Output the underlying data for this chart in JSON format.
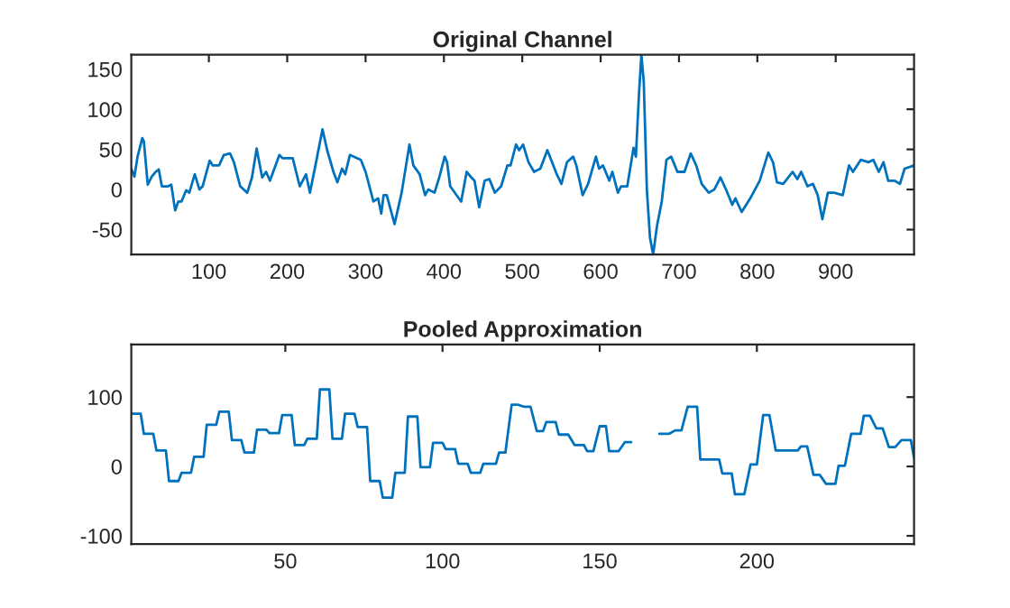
{
  "chart_data": [
    {
      "type": "line",
      "title": "Original Channel",
      "xlim": [
        1,
        1000
      ],
      "ylim": [
        -81,
        168
      ],
      "xticks": [
        100,
        200,
        300,
        400,
        500,
        600,
        700,
        800,
        900
      ],
      "yticks": [
        -50,
        0,
        50,
        100,
        150
      ],
      "grid": false,
      "series": [
        {
          "color": "#0072bd",
          "x": [
            1,
            5,
            9,
            15,
            17,
            22,
            27,
            32,
            36,
            40,
            48,
            52,
            57,
            61,
            65,
            71,
            75,
            82,
            88,
            92,
            101,
            105,
            113,
            119,
            127,
            132,
            140,
            149,
            155,
            161,
            168,
            173,
            178,
            190,
            194,
            207,
            216,
            224,
            229,
            236,
            245,
            251,
            259,
            264,
            270,
            274,
            280,
            294,
            300,
            310,
            316,
            320,
            323,
            327,
            337,
            346,
            356,
            361,
            369,
            376,
            380,
            388,
            394,
            401,
            404,
            408,
            416,
            422,
            429,
            435,
            439,
            445,
            452,
            458,
            465,
            473,
            481,
            485,
            492,
            496,
            501,
            508,
            515,
            523,
            532,
            538,
            544,
            550,
            557,
            565,
            569,
            577,
            584,
            594,
            598,
            603,
            611,
            615,
            622,
            626,
            634,
            642,
            645,
            649,
            652,
            655,
            659,
            663,
            667,
            672,
            678,
            684,
            690,
            698,
            707,
            715,
            722,
            729,
            738,
            745,
            753,
            760,
            768,
            772,
            780,
            791,
            803,
            814,
            820,
            825,
            833,
            845,
            851,
            856,
            864,
            871,
            877,
            883,
            890,
            898,
            909,
            917,
            922,
            932,
            942,
            948,
            955,
            961,
            967,
            975,
            982,
            988,
            1000
          ],
          "values": [
            26,
            16,
            41,
            64,
            60,
            6,
            16,
            22,
            25,
            4,
            4,
            6,
            -26,
            -15,
            -15,
            -1,
            -4,
            19,
            0,
            4,
            36,
            30,
            30,
            43,
            45,
            34,
            4,
            -4,
            15,
            51,
            15,
            22,
            11,
            43,
            39,
            39,
            4,
            19,
            -4,
            30,
            75,
            49,
            22,
            9,
            26,
            19,
            43,
            37,
            22,
            -15,
            -11,
            -30,
            -7,
            -7,
            -43,
            -4,
            56,
            30,
            19,
            -7,
            0,
            -4,
            15,
            41,
            34,
            4,
            -7,
            -15,
            22,
            15,
            11,
            -22,
            11,
            13,
            -4,
            4,
            30,
            30,
            56,
            49,
            56,
            34,
            22,
            26,
            49,
            34,
            19,
            7,
            34,
            41,
            30,
            -7,
            7,
            41,
            26,
            30,
            11,
            22,
            -4,
            4,
            4,
            52,
            41,
            120,
            168,
            135,
            0,
            -60,
            -81,
            -45,
            -15,
            37,
            41,
            22,
            22,
            45,
            30,
            7,
            -4,
            0,
            15,
            0,
            -19,
            -11,
            -28,
            -11,
            11,
            46,
            34,
            9,
            7,
            22,
            13,
            22,
            4,
            7,
            -7,
            -37,
            -4,
            -4,
            -7,
            30,
            22,
            37,
            34,
            37,
            22,
            34,
            11,
            11,
            7,
            26,
            30
          ]
        }
      ]
    },
    {
      "type": "line",
      "title": "Pooled Approximation",
      "xlim": [
        1,
        250
      ],
      "ylim": [
        -112,
        176
      ],
      "xticks": [
        50,
        100,
        150,
        200
      ],
      "yticks": [
        -100,
        0,
        100
      ],
      "grid": false,
      "series": [
        {
          "color": "#0072bd",
          "x": [
            1,
            4,
            5,
            8,
            9,
            12,
            13,
            16,
            17,
            20,
            21,
            24,
            25,
            28,
            29,
            32,
            33,
            36,
            37,
            40,
            41,
            44,
            45,
            48,
            49,
            52,
            53,
            56,
            57,
            60,
            61,
            64,
            65,
            68,
            69,
            72,
            73,
            76,
            77,
            80,
            81,
            84,
            85,
            88,
            89,
            92,
            93,
            96,
            97,
            100,
            101,
            104,
            105,
            108,
            109,
            112,
            113,
            117,
            118,
            120,
            122,
            124,
            126,
            128,
            130,
            132,
            133,
            136,
            137,
            140,
            142,
            145,
            146,
            148,
            150,
            152,
            153,
            156,
            158,
            160,
            161,
            165,
            166,
            168,
            169,
            172,
            174,
            176,
            178,
            181,
            182,
            188,
            189,
            192,
            193,
            196,
            198,
            200,
            202,
            204,
            206,
            213,
            214,
            216,
            218,
            220,
            222,
            225,
            226,
            228,
            230,
            233,
            234,
            236,
            238,
            240,
            242,
            244,
            246,
            249,
            250
          ],
          "values": [
            76,
            76,
            47,
            47,
            23,
            23,
            -21,
            -21,
            -9,
            -9,
            14,
            14,
            60,
            60,
            79,
            79,
            38,
            38,
            20,
            20,
            53,
            53,
            48,
            48,
            74,
            74,
            31,
            31,
            40,
            40,
            111,
            111,
            40,
            40,
            76,
            76,
            57,
            57,
            -21,
            -21,
            -45,
            -45,
            -9,
            -9,
            72,
            72,
            -1,
            -1,
            34,
            34,
            25,
            25,
            4,
            4,
            -9,
            -9,
            4,
            4,
            20,
            20,
            89,
            89,
            86,
            86,
            51,
            51,
            64,
            64,
            46,
            46,
            31,
            31,
            22,
            22,
            58,
            58,
            22,
            22,
            35,
            35,
            null,
            null,
            null,
            null,
            47,
            47,
            52,
            52,
            86,
            86,
            10,
            10,
            -10,
            -10,
            -40,
            -40,
            3,
            3,
            74,
            74,
            23,
            23,
            29,
            29,
            -12,
            -12,
            -25,
            -25,
            1,
            1,
            47,
            47,
            73,
            73,
            55,
            55,
            28,
            28,
            38,
            38,
            12
          ]
        }
      ]
    }
  ]
}
